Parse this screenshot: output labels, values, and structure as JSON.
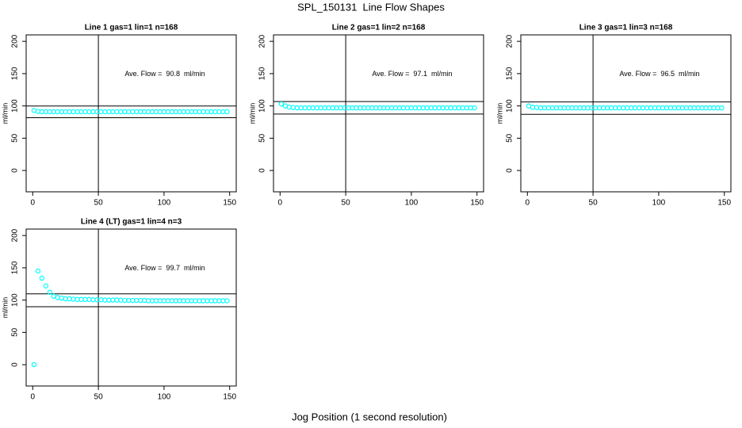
{
  "title": "SPL_150131  Line Flow Shapes",
  "xlabel": "Jog Position (1 second resolution)",
  "chart_data": [
    {
      "type": "scatter",
      "title": "Line 1 gas=1 lin=1 n=168",
      "ylabel": "ml/min",
      "annotation": "Ave. Flow =  90.8  ml/min",
      "x": [
        1,
        4,
        7,
        10,
        13,
        16,
        19,
        22,
        25,
        28,
        31,
        34,
        37,
        40,
        43,
        46,
        49,
        52,
        55,
        58,
        61,
        64,
        67,
        70,
        73,
        76,
        79,
        82,
        85,
        88,
        91,
        94,
        97,
        100,
        103,
        106,
        109,
        112,
        115,
        118,
        121,
        124,
        127,
        130,
        133,
        136,
        139,
        142,
        145,
        148
      ],
      "series": [
        {
          "color": "#00ffff",
          "values": [
            93,
            91.5,
            91,
            91,
            91,
            91,
            91,
            91,
            91,
            91,
            91,
            91,
            91,
            91,
            91,
            91,
            91,
            91,
            91,
            91,
            91,
            91,
            91,
            91,
            91,
            91,
            91,
            91,
            91,
            91,
            91,
            91,
            91,
            91,
            91,
            91,
            91,
            91,
            91,
            91,
            91,
            91,
            91,
            91,
            91,
            91,
            91,
            91,
            91,
            91
          ]
        }
      ],
      "hlines": [
        99.9,
        81.7
      ],
      "vline": 50,
      "xlim": [
        -5,
        155
      ],
      "ylim": [
        -33,
        210
      ],
      "xticks": [
        0,
        50,
        100,
        150
      ],
      "yticks": [
        0,
        50,
        100,
        150,
        200
      ]
    },
    {
      "type": "scatter",
      "title": "Line 2 gas=1 lin=2 n=168",
      "ylabel": "ml/min",
      "annotation": "Ave. Flow =  97.1  ml/min",
      "x": [
        1,
        4,
        7,
        10,
        13,
        16,
        19,
        22,
        25,
        28,
        31,
        34,
        37,
        40,
        43,
        46,
        49,
        52,
        55,
        58,
        61,
        64,
        67,
        70,
        73,
        76,
        79,
        82,
        85,
        88,
        91,
        94,
        97,
        100,
        103,
        106,
        109,
        112,
        115,
        118,
        121,
        124,
        127,
        130,
        133,
        136,
        139,
        142,
        145,
        148
      ],
      "series": [
        {
          "color": "#00ffff",
          "values": [
            103,
            100,
            98,
            97.5,
            97,
            97,
            97,
            97,
            97,
            97,
            97,
            97,
            97,
            97,
            97,
            97,
            97,
            97,
            97,
            97,
            97,
            97,
            97,
            97,
            97,
            97,
            97,
            97,
            97,
            97,
            97,
            97,
            97,
            97,
            97,
            97,
            97,
            97,
            97,
            97,
            97,
            97,
            97,
            97,
            97,
            97,
            97,
            97,
            97,
            97
          ]
        }
      ],
      "hlines": [
        106.8,
        87.4
      ],
      "vline": 50,
      "xlim": [
        -5,
        155
      ],
      "ylim": [
        -33,
        210
      ],
      "xticks": [
        0,
        50,
        100,
        150
      ],
      "yticks": [
        0,
        50,
        100,
        150,
        200
      ]
    },
    {
      "type": "scatter",
      "title": "Line 3 gas=1 lin=3 n=168",
      "ylabel": "ml/min",
      "annotation": "Ave. Flow =  96.5  ml/min",
      "x": [
        1,
        4,
        7,
        10,
        13,
        16,
        19,
        22,
        25,
        28,
        31,
        34,
        37,
        40,
        43,
        46,
        49,
        52,
        55,
        58,
        61,
        64,
        67,
        70,
        73,
        76,
        79,
        82,
        85,
        88,
        91,
        94,
        97,
        100,
        103,
        106,
        109,
        112,
        115,
        118,
        121,
        124,
        127,
        130,
        133,
        136,
        139,
        142,
        145,
        148
      ],
      "series": [
        {
          "color": "#00ffff",
          "values": [
            100,
            98,
            97.5,
            97,
            97,
            97,
            97,
            97,
            97,
            97,
            97,
            97,
            97,
            97,
            97,
            97,
            97,
            97,
            97,
            97,
            97,
            97,
            97,
            97,
            97,
            97,
            97,
            97,
            97,
            97,
            97,
            97,
            97,
            97,
            97,
            97,
            97,
            97,
            97,
            97,
            97,
            97,
            97,
            97,
            97,
            97,
            97,
            97,
            97,
            97
          ]
        }
      ],
      "hlines": [
        106.2,
        86.9
      ],
      "vline": 50,
      "xlim": [
        -5,
        155
      ],
      "ylim": [
        -33,
        210
      ],
      "xticks": [
        0,
        50,
        100,
        150
      ],
      "yticks": [
        0,
        50,
        100,
        150,
        200
      ]
    },
    {
      "type": "scatter",
      "title": "Line 4 (LT) gas=1 lin=4 n=3",
      "ylabel": "ml/min",
      "annotation": "Ave. Flow =  99.7  ml/min",
      "x": [
        1,
        4,
        7,
        10,
        13,
        16,
        19,
        22,
        25,
        28,
        31,
        34,
        37,
        40,
        43,
        46,
        49,
        52,
        55,
        58,
        61,
        64,
        67,
        70,
        73,
        76,
        79,
        82,
        85,
        88,
        91,
        94,
        97,
        100,
        103,
        106,
        109,
        112,
        115,
        118,
        121,
        124,
        127,
        130,
        133,
        136,
        139,
        142,
        145,
        148
      ],
      "series": [
        {
          "color": "#00ffff",
          "values": [
            0,
            145,
            134,
            122,
            112,
            106,
            104,
            103,
            102,
            102,
            101.5,
            101,
            101,
            101,
            101,
            100.5,
            100.5,
            100.5,
            100,
            100,
            100,
            100,
            100,
            99.5,
            99.5,
            99.5,
            99.5,
            99.5,
            99.5,
            99,
            99,
            99,
            99,
            99,
            99,
            99,
            99,
            99,
            99,
            99,
            99,
            99,
            99,
            99,
            99,
            99,
            99,
            99,
            99,
            99
          ]
        }
      ],
      "hlines": [
        109.7,
        89.7
      ],
      "vline": 50,
      "xlim": [
        -5,
        155
      ],
      "ylim": [
        -33,
        210
      ],
      "xticks": [
        0,
        50,
        100,
        150
      ],
      "yticks": [
        0,
        50,
        100,
        150,
        200
      ]
    }
  ]
}
